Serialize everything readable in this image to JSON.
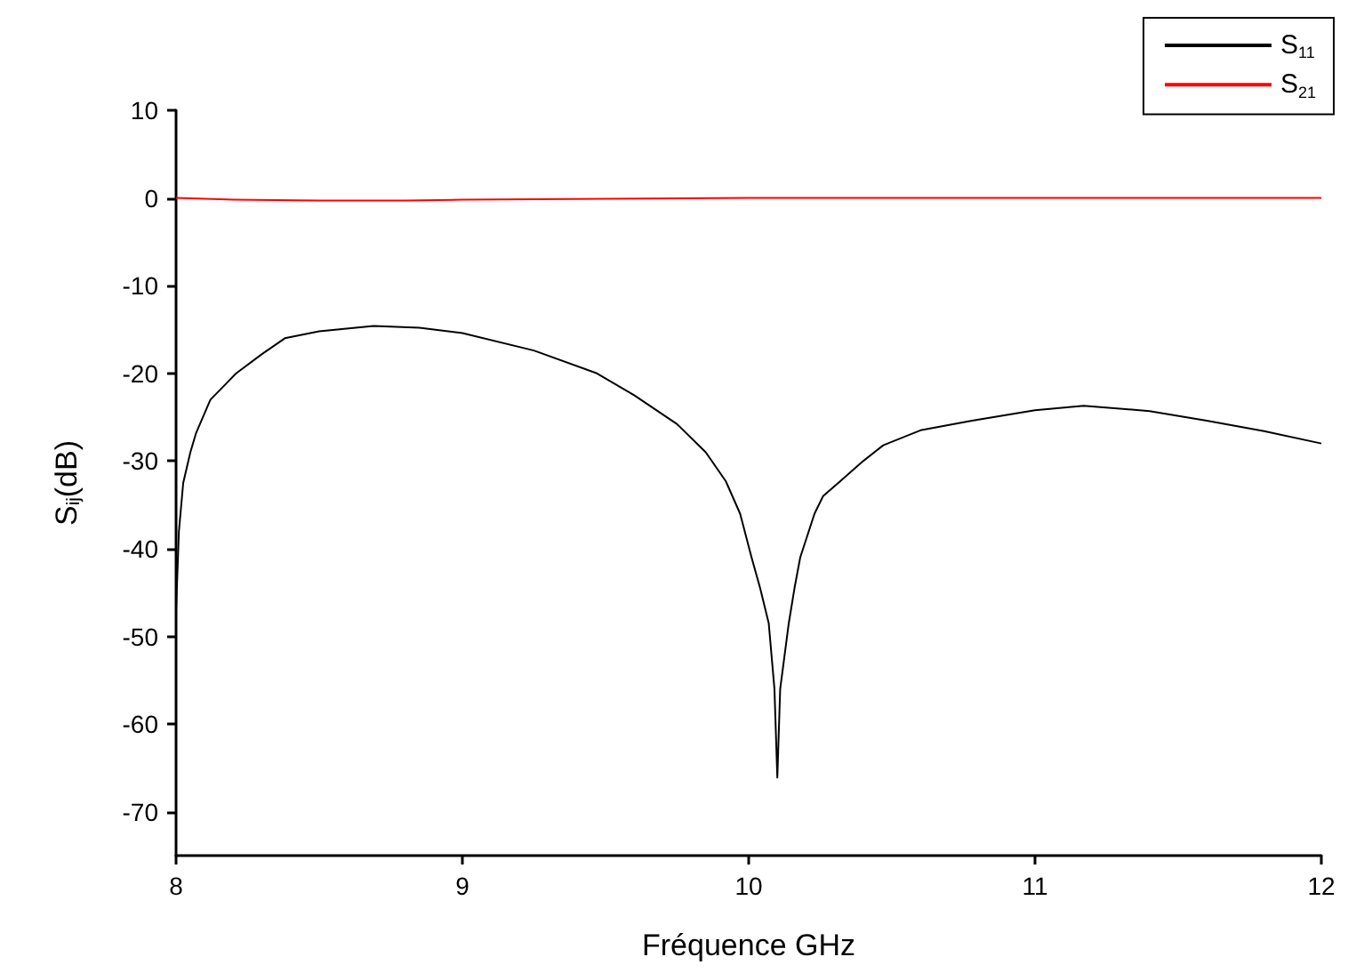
{
  "chart_data": {
    "type": "line",
    "xlabel": "Fréquence GHz",
    "ylabel": "S$_{ij}$(dB)",
    "xlim": [
      8,
      12
    ],
    "xticks": [
      8,
      9,
      10,
      11,
      12
    ],
    "ylim": [
      -75,
      10
    ],
    "yticks": [
      -70,
      -60,
      -50,
      -40,
      -30,
      -20,
      -10,
      0,
      10
    ],
    "grid": false,
    "legend": "top right",
    "marker": "none",
    "line_style": "solid",
    "series": [
      {
        "name": "S$_{11}$",
        "color": "#000000",
        "x": [
          8.0,
          8.01,
          8.025,
          8.05,
          8.07,
          8.12,
          8.21,
          8.3,
          8.38,
          8.5,
          8.69,
          8.85,
          9.0,
          9.25,
          9.47,
          9.6,
          9.75,
          9.85,
          9.92,
          9.97,
          10.01,
          10.04,
          10.07,
          10.09,
          10.1,
          10.11,
          10.14,
          10.16,
          10.18,
          10.23,
          10.26,
          10.32,
          10.4,
          10.47,
          10.6,
          10.78,
          11.0,
          11.17,
          11.4,
          11.6,
          11.8,
          12.0
        ],
        "values": [
          -47,
          -38,
          -32.5,
          -29,
          -26.8,
          -23,
          -20,
          -17.8,
          -16,
          -15.2,
          -14.6,
          -14.8,
          -15.4,
          -17.4,
          -20,
          -22.5,
          -25.8,
          -29,
          -32.3,
          -36,
          -41,
          -44.5,
          -48.5,
          -56,
          -66.1,
          -56,
          -48.5,
          -44.5,
          -41,
          -36,
          -34,
          -32.3,
          -30,
          -28.2,
          -26.5,
          -25.4,
          -24.2,
          -23.7,
          -24.3,
          -25.4,
          -26.6,
          -28
        ]
      },
      {
        "name": "S$_{21}$",
        "color": "#ff0000",
        "x": [
          8.0,
          8.2,
          8.5,
          8.8,
          9.0,
          9.5,
          10.0,
          10.5,
          11.0,
          12.0
        ],
        "values": [
          0,
          -0.2,
          -0.3,
          -0.3,
          -0.2,
          -0.1,
          0,
          0,
          0,
          0
        ]
      }
    ]
  }
}
